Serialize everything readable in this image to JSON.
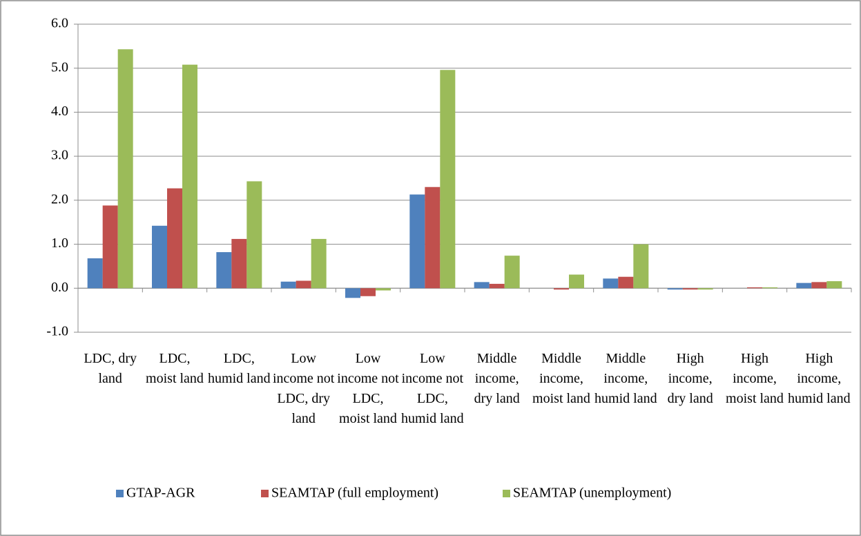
{
  "chart_data": {
    "type": "bar",
    "categories": [
      "LDC, dry land",
      "LDC, moist land",
      "LDC, humid land",
      "Low income not LDC, dry land",
      "Low income not LDC, moist land",
      "Low income not LDC, humid land",
      "Middle income, dry land",
      "Middle income, moist land",
      "Middle income, humid land",
      "High income, dry land",
      "High income, moist land",
      "High income, humid land"
    ],
    "series": [
      {
        "name": "GTAP-AGR",
        "color": "#4f81bd",
        "values": [
          0.68,
          1.42,
          0.82,
          0.15,
          -0.22,
          2.13,
          0.14,
          0.0,
          0.22,
          -0.03,
          0.0,
          0.12
        ]
      },
      {
        "name": "SEAMTAP (full employment)",
        "color": "#c0504d",
        "values": [
          1.88,
          2.27,
          1.12,
          0.17,
          -0.18,
          2.3,
          0.1,
          -0.03,
          0.26,
          -0.03,
          0.02,
          0.14
        ]
      },
      {
        "name": "SEAMTAP (unemployment)",
        "color": "#9bbb59",
        "values": [
          5.43,
          5.08,
          2.43,
          1.12,
          -0.05,
          4.96,
          0.74,
          0.31,
          1.0,
          -0.03,
          0.02,
          0.16
        ]
      }
    ],
    "ylim": [
      -1,
      6
    ],
    "yticks": [
      {
        "value": -1,
        "label": "-1.0"
      },
      {
        "value": 0,
        "label": "0.0"
      },
      {
        "value": 1,
        "label": "1.0"
      },
      {
        "value": 2,
        "label": "2.0"
      },
      {
        "value": 3,
        "label": "3.0"
      },
      {
        "value": 4,
        "label": "4.0"
      },
      {
        "value": 5,
        "label": "5.0"
      },
      {
        "value": 6,
        "label": "6.0"
      }
    ],
    "grid": true,
    "legend": "bottom"
  }
}
